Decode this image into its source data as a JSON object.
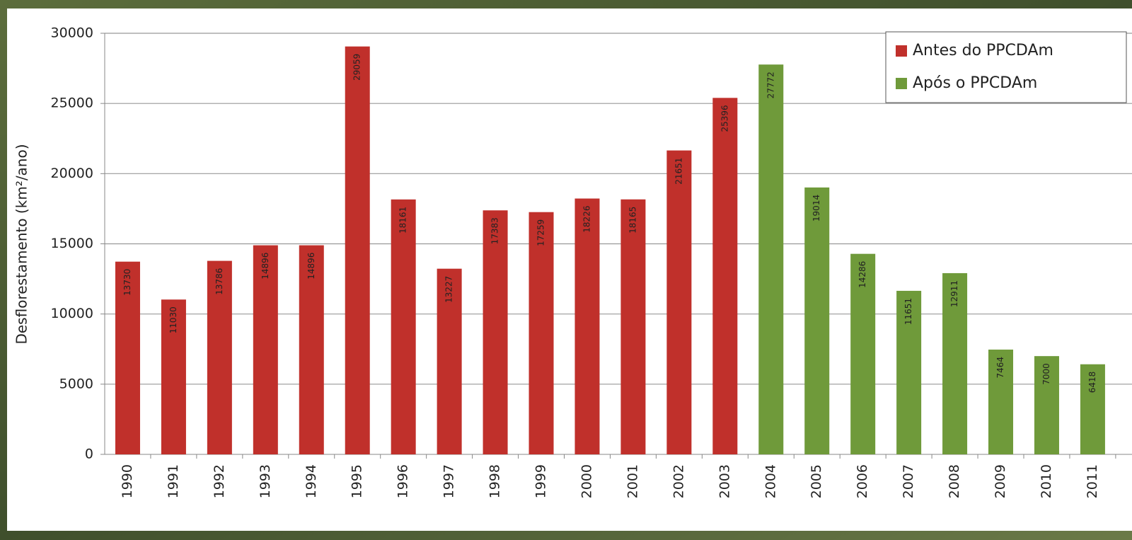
{
  "chart_data": {
    "type": "bar",
    "y_label": "Desflorestamento (km²/ano)",
    "categories": [
      "1990",
      "1991",
      "1992",
      "1993",
      "1994",
      "1995",
      "1996",
      "1997",
      "1998",
      "1999",
      "2000",
      "2001",
      "2002",
      "2003",
      "2004",
      "2005",
      "2006",
      "2007",
      "2008",
      "2009",
      "2010",
      "2011"
    ],
    "series": [
      {
        "name": "Antes do PPCDAm",
        "color": "#c0302b",
        "values": [
          13730,
          11030,
          13786,
          14896,
          14896,
          29059,
          18161,
          13227,
          17383,
          17259,
          18226,
          18165,
          21651,
          25396,
          null,
          null,
          null,
          null,
          null,
          null,
          null,
          null
        ]
      },
      {
        "name": "Após o PPCDAm",
        "color": "#6f9a3a",
        "values": [
          null,
          null,
          null,
          null,
          null,
          null,
          null,
          null,
          null,
          null,
          null,
          null,
          null,
          null,
          27772,
          19014,
          14286,
          11651,
          12911,
          7464,
          7000,
          6418
        ]
      }
    ],
    "ylim": [
      0,
      30000
    ],
    "yticks": [
      0,
      5000,
      10000,
      15000,
      20000,
      25000,
      30000
    ],
    "grid": true,
    "legend": "top-right"
  }
}
